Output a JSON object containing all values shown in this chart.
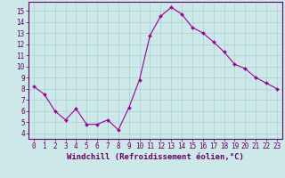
{
  "x": [
    0,
    1,
    2,
    3,
    4,
    5,
    6,
    7,
    8,
    9,
    10,
    11,
    12,
    13,
    14,
    15,
    16,
    17,
    18,
    19,
    20,
    21,
    22,
    23
  ],
  "y": [
    8.2,
    7.5,
    6.0,
    5.2,
    6.2,
    4.8,
    4.8,
    5.2,
    4.3,
    6.3,
    8.8,
    12.8,
    14.5,
    15.3,
    14.7,
    13.5,
    13.0,
    12.2,
    11.3,
    10.2,
    9.8,
    9.0,
    8.5,
    8.0
  ],
  "line_color": "#990099",
  "marker": "D",
  "marker_size": 2.0,
  "background_color": "#cce8e8",
  "grid_color": "#aacfcf",
  "xlabel": "Windchill (Refroidissement éolien,°C)",
  "xlabel_fontsize": 6.5,
  "xlim": [
    -0.5,
    23.5
  ],
  "ylim": [
    3.5,
    15.8
  ],
  "yticks": [
    4,
    5,
    6,
    7,
    8,
    9,
    10,
    11,
    12,
    13,
    14,
    15
  ],
  "xticks": [
    0,
    1,
    2,
    3,
    4,
    5,
    6,
    7,
    8,
    9,
    10,
    11,
    12,
    13,
    14,
    15,
    16,
    17,
    18,
    19,
    20,
    21,
    22,
    23
  ],
  "tick_fontsize": 5.5,
  "text_color": "#660066",
  "spine_color": "#660066"
}
